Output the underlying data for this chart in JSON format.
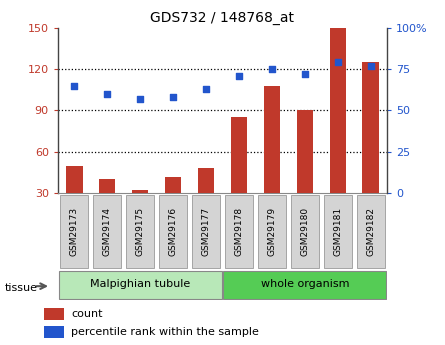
{
  "title": "GDS732 / 148768_at",
  "categories": [
    "GSM29173",
    "GSM29174",
    "GSM29175",
    "GSM29176",
    "GSM29177",
    "GSM29178",
    "GSM29179",
    "GSM29180",
    "GSM29181",
    "GSM29182"
  ],
  "counts": [
    50,
    40,
    32,
    42,
    48,
    85,
    108,
    90,
    150,
    125
  ],
  "percentiles": [
    65,
    60,
    57,
    58,
    63,
    71,
    75,
    72,
    79,
    77
  ],
  "ylim_left": [
    30,
    150
  ],
  "ylim_right": [
    0,
    100
  ],
  "yticks_left": [
    30,
    60,
    90,
    120,
    150
  ],
  "yticks_right": [
    0,
    25,
    50,
    75,
    100
  ],
  "bar_color": "#c0392b",
  "dot_color": "#2255cc",
  "bar_width": 0.5,
  "tissue_groups": [
    {
      "label": "Malpighian tubule",
      "indices": [
        0,
        1,
        2,
        3,
        4
      ],
      "color": "#b8e8b8"
    },
    {
      "label": "whole organism",
      "indices": [
        5,
        6,
        7,
        8,
        9
      ],
      "color": "#55cc55"
    }
  ],
  "tissue_label": "tissue",
  "legend_count_label": "count",
  "legend_percentile_label": "percentile rank within the sample"
}
